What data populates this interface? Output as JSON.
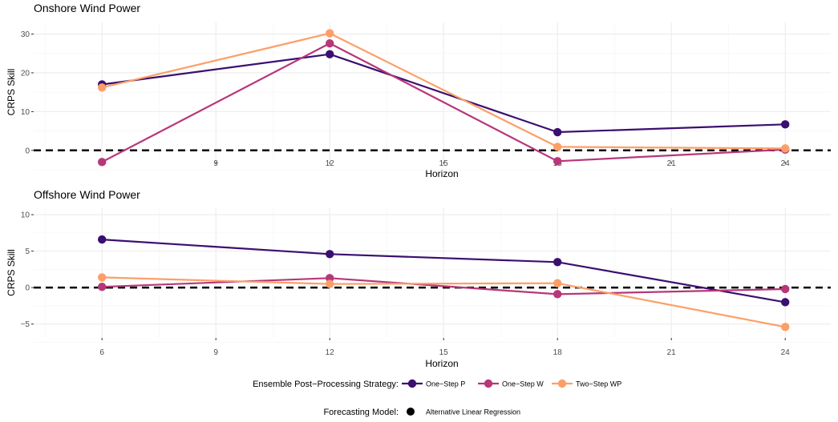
{
  "chart_data": [
    {
      "type": "line",
      "title": "Onshore Wind Power",
      "xlabel": "Horizon",
      "ylabel": "CRPS Skill",
      "x": [
        6,
        12,
        18,
        24
      ],
      "xlim": [
        4.2,
        25.2
      ],
      "xticks": [
        "6",
        "9",
        "12",
        "15",
        "18",
        "21",
        "24"
      ],
      "ylim": [
        -5,
        33
      ],
      "yticks": [
        "0",
        "10",
        "20",
        "30"
      ],
      "reference_line": 0,
      "series": [
        {
          "name": "One−Step P",
          "values": [
            17.0,
            24.8,
            4.7,
            6.7
          ]
        },
        {
          "name": "One−Step W",
          "values": [
            -3.0,
            27.6,
            -2.8,
            0.2
          ]
        },
        {
          "name": "Two−Step WP",
          "values": [
            16.2,
            30.2,
            0.9,
            0.5
          ]
        }
      ]
    },
    {
      "type": "line",
      "title": "Offshore Wind Power",
      "xlabel": "Horizon",
      "ylabel": "CRPS Skill",
      "x": [
        6,
        12,
        18,
        24
      ],
      "xlim": [
        4.2,
        25.2
      ],
      "xticks": [
        "6",
        "9",
        "12",
        "15",
        "18",
        "21",
        "24"
      ],
      "ylim": [
        -8,
        11
      ],
      "yticks": [
        "−5",
        "0",
        "5",
        "10"
      ],
      "reference_line": 0,
      "series": [
        {
          "name": "One−Step P",
          "values": [
            6.6,
            4.6,
            3.5,
            -2.0
          ]
        },
        {
          "name": "One−Step W",
          "values": [
            0.1,
            1.3,
            -0.9,
            -0.2
          ]
        },
        {
          "name": "Two−Step WP",
          "values": [
            1.4,
            0.5,
            0.6,
            -5.4
          ]
        }
      ]
    }
  ],
  "colors": {
    "series": [
      "#3b0f70",
      "#b73779",
      "#fc9f67"
    ],
    "model": "#000000"
  },
  "legend": {
    "strategy_title": "Ensemble Post−Processing Strategy:",
    "model_title": "Forecasting Model:",
    "model_item": "Alternative Linear Regression"
  }
}
